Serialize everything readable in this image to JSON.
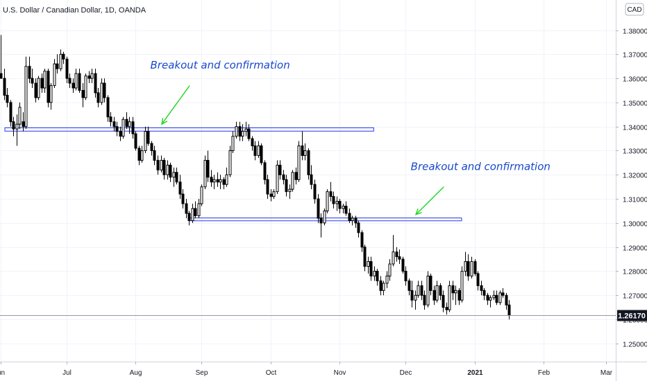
{
  "chart_data": {
    "type": "candlestick",
    "title": "U.S. Dollar / Canadian Dollar, 1D, OANDA",
    "currency": "CAD",
    "y_ticks": [
      "1.38000",
      "1.37000",
      "1.36000",
      "1.35000",
      "1.34000",
      "1.33000",
      "1.32000",
      "1.31000",
      "1.30000",
      "1.29000",
      "1.28000",
      "1.27000",
      "1.26000",
      "1.25000"
    ],
    "y_tick_values": [
      1.38,
      1.37,
      1.36,
      1.35,
      1.34,
      1.33,
      1.32,
      1.31,
      1.3,
      1.29,
      1.28,
      1.27,
      1.26,
      1.25
    ],
    "ylim": [
      1.2425,
      1.3925
    ],
    "last_price_label": "1.26170",
    "last_price": 1.2617,
    "x_ticks": [
      {
        "label": "un",
        "index": 0,
        "bold": false
      },
      {
        "label": "Jul",
        "index": 21,
        "bold": false
      },
      {
        "label": "Aug",
        "index": 43,
        "bold": false
      },
      {
        "label": "Sep",
        "index": 64,
        "bold": false
      },
      {
        "label": "Oct",
        "index": 86,
        "bold": false
      },
      {
        "label": "Nov",
        "index": 108,
        "bold": false
      },
      {
        "label": "Dec",
        "index": 129,
        "bold": false
      },
      {
        "label": "2021",
        "index": 151,
        "bold": true
      },
      {
        "label": "Feb",
        "index": 173,
        "bold": false
      },
      {
        "label": "Mar",
        "index": 193,
        "bold": false
      }
    ],
    "levels": [
      {
        "name": "resistance-zone",
        "top": 1.3395,
        "bottom": 1.3381,
        "start_index": 0,
        "end_index": 118
      },
      {
        "name": "support-zone",
        "top": 1.3021,
        "bottom": 1.3009,
        "start_index": 59,
        "end_index": 146
      }
    ],
    "annotations": [
      {
        "text": "Breakout and confirmation",
        "index": 51,
        "price": 1.364,
        "arrow_from": [
          58,
          1.357
        ],
        "arrow_to": [
          50,
          1.341
        ]
      },
      {
        "text": "Breakout and confirmation",
        "index": 134,
        "price": 1.322,
        "arrow_from": [
          139,
          1.315
        ],
        "arrow_to": [
          131,
          1.3035
        ]
      }
    ],
    "candles": [
      [
        1.362,
        1.378,
        1.36,
        1.36
      ],
      [
        1.36,
        1.364,
        1.351,
        1.353
      ],
      [
        1.353,
        1.356,
        1.348,
        1.35
      ],
      [
        1.35,
        1.351,
        1.34,
        1.342
      ],
      [
        1.342,
        1.344,
        1.336,
        1.339
      ],
      [
        1.339,
        1.345,
        1.332,
        1.341
      ],
      [
        1.341,
        1.35,
        1.339,
        1.348
      ],
      [
        1.342,
        1.346,
        1.338,
        1.34
      ],
      [
        1.34,
        1.369,
        1.339,
        1.365
      ],
      [
        1.365,
        1.369,
        1.358,
        1.36
      ],
      [
        1.36,
        1.364,
        1.356,
        1.358
      ],
      [
        1.358,
        1.36,
        1.35,
        1.352
      ],
      [
        1.352,
        1.361,
        1.351,
        1.36
      ],
      [
        1.36,
        1.362,
        1.354,
        1.356
      ],
      [
        1.356,
        1.364,
        1.354,
        1.363
      ],
      [
        1.363,
        1.364,
        1.348,
        1.35
      ],
      [
        1.35,
        1.358,
        1.347,
        1.357
      ],
      [
        1.357,
        1.368,
        1.356,
        1.366
      ],
      [
        1.366,
        1.37,
        1.362,
        1.364
      ],
      [
        1.364,
        1.372,
        1.363,
        1.37
      ],
      [
        1.37,
        1.371,
        1.366,
        1.368
      ],
      [
        1.368,
        1.369,
        1.358,
        1.36
      ],
      [
        1.36,
        1.362,
        1.356,
        1.358
      ],
      [
        1.358,
        1.36,
        1.354,
        1.356
      ],
      [
        1.356,
        1.364,
        1.355,
        1.362
      ],
      [
        1.362,
        1.364,
        1.354,
        1.355
      ],
      [
        1.355,
        1.358,
        1.348,
        1.352
      ],
      [
        1.352,
        1.362,
        1.351,
        1.361
      ],
      [
        1.361,
        1.363,
        1.358,
        1.36
      ],
      [
        1.36,
        1.364,
        1.358,
        1.362
      ],
      [
        1.362,
        1.364,
        1.352,
        1.354
      ],
      [
        1.354,
        1.356,
        1.348,
        1.35
      ],
      [
        1.35,
        1.36,
        1.349,
        1.358
      ],
      [
        1.358,
        1.36,
        1.35,
        1.352
      ],
      [
        1.352,
        1.353,
        1.342,
        1.344
      ],
      [
        1.344,
        1.346,
        1.34,
        1.342
      ],
      [
        1.342,
        1.344,
        1.338,
        1.34
      ],
      [
        1.34,
        1.342,
        1.336,
        1.338
      ],
      [
        1.338,
        1.34,
        1.334,
        1.336
      ],
      [
        1.336,
        1.344,
        1.335,
        1.343
      ],
      [
        1.343,
        1.346,
        1.339,
        1.34
      ],
      [
        1.34,
        1.344,
        1.337,
        1.342
      ],
      [
        1.342,
        1.344,
        1.335,
        1.337
      ],
      [
        1.337,
        1.338,
        1.33,
        1.331
      ],
      [
        1.331,
        1.332,
        1.324,
        1.326
      ],
      [
        1.326,
        1.332,
        1.325,
        1.33
      ],
      [
        1.33,
        1.34,
        1.329,
        1.338
      ],
      [
        1.338,
        1.34,
        1.332,
        1.333
      ],
      [
        1.333,
        1.334,
        1.328,
        1.33
      ],
      [
        1.33,
        1.332,
        1.324,
        1.326
      ],
      [
        1.326,
        1.328,
        1.32,
        1.322
      ],
      [
        1.322,
        1.328,
        1.321,
        1.326
      ],
      [
        1.326,
        1.327,
        1.318,
        1.32
      ],
      [
        1.32,
        1.326,
        1.318,
        1.324
      ],
      [
        1.324,
        1.325,
        1.317,
        1.319
      ],
      [
        1.319,
        1.323,
        1.315,
        1.321
      ],
      [
        1.321,
        1.323,
        1.316,
        1.317
      ],
      [
        1.317,
        1.32,
        1.31,
        1.312
      ],
      [
        1.312,
        1.314,
        1.306,
        1.308
      ],
      [
        1.308,
        1.31,
        1.302,
        1.304
      ],
      [
        1.304,
        1.305,
        1.299,
        1.301
      ],
      [
        1.301,
        1.308,
        1.3,
        1.306
      ],
      [
        1.306,
        1.309,
        1.302,
        1.303
      ],
      [
        1.303,
        1.31,
        1.302,
        1.308
      ],
      [
        1.308,
        1.316,
        1.307,
        1.315
      ],
      [
        1.315,
        1.328,
        1.314,
        1.326
      ],
      [
        1.326,
        1.33,
        1.317,
        1.319
      ],
      [
        1.319,
        1.322,
        1.315,
        1.317
      ],
      [
        1.317,
        1.32,
        1.314,
        1.318
      ],
      [
        1.318,
        1.321,
        1.315,
        1.317
      ],
      [
        1.317,
        1.32,
        1.314,
        1.318
      ],
      [
        1.318,
        1.319,
        1.314,
        1.316
      ],
      [
        1.316,
        1.323,
        1.315,
        1.32
      ],
      [
        1.32,
        1.332,
        1.319,
        1.33
      ],
      [
        1.33,
        1.338,
        1.329,
        1.336
      ],
      [
        1.336,
        1.342,
        1.335,
        1.34
      ],
      [
        1.34,
        1.342,
        1.334,
        1.336
      ],
      [
        1.336,
        1.341,
        1.334,
        1.338
      ],
      [
        1.338,
        1.342,
        1.336,
        1.339
      ],
      [
        1.339,
        1.341,
        1.334,
        1.335
      ],
      [
        1.335,
        1.336,
        1.33,
        1.332
      ],
      [
        1.332,
        1.334,
        1.326,
        1.328
      ],
      [
        1.328,
        1.334,
        1.327,
        1.332
      ],
      [
        1.332,
        1.333,
        1.324,
        1.325
      ],
      [
        1.325,
        1.326,
        1.316,
        1.318
      ],
      [
        1.318,
        1.32,
        1.31,
        1.312
      ],
      [
        1.312,
        1.314,
        1.309,
        1.311
      ],
      [
        1.311,
        1.314,
        1.31,
        1.313
      ],
      [
        1.313,
        1.326,
        1.312,
        1.324
      ],
      [
        1.324,
        1.326,
        1.318,
        1.32
      ],
      [
        1.32,
        1.322,
        1.316,
        1.318
      ],
      [
        1.318,
        1.32,
        1.311,
        1.313
      ],
      [
        1.313,
        1.316,
        1.31,
        1.314
      ],
      [
        1.314,
        1.322,
        1.313,
        1.321
      ],
      [
        1.321,
        1.323,
        1.316,
        1.318
      ],
      [
        1.318,
        1.334,
        1.317,
        1.332
      ],
      [
        1.332,
        1.338,
        1.326,
        1.328
      ],
      [
        1.328,
        1.333,
        1.326,
        1.33
      ],
      [
        1.33,
        1.331,
        1.318,
        1.32
      ],
      [
        1.32,
        1.324,
        1.314,
        1.316
      ],
      [
        1.316,
        1.318,
        1.308,
        1.31
      ],
      [
        1.31,
        1.312,
        1.3,
        1.302
      ],
      [
        1.302,
        1.304,
        1.294,
        1.3
      ],
      [
        1.3,
        1.306,
        1.299,
        1.305
      ],
      [
        1.305,
        1.314,
        1.304,
        1.313
      ],
      [
        1.313,
        1.317,
        1.309,
        1.311
      ],
      [
        1.311,
        1.313,
        1.306,
        1.308
      ],
      [
        1.308,
        1.311,
        1.305,
        1.309
      ],
      [
        1.309,
        1.31,
        1.304,
        1.306
      ],
      [
        1.306,
        1.308,
        1.304,
        1.307
      ],
      [
        1.307,
        1.309,
        1.303,
        1.304
      ],
      [
        1.304,
        1.306,
        1.3,
        1.301
      ],
      [
        1.301,
        1.303,
        1.299,
        1.302
      ],
      [
        1.302,
        1.303,
        1.298,
        1.3
      ],
      [
        1.3,
        1.301,
        1.294,
        1.296
      ],
      [
        1.296,
        1.297,
        1.288,
        1.29
      ],
      [
        1.29,
        1.291,
        1.28,
        1.282
      ],
      [
        1.282,
        1.286,
        1.279,
        1.284
      ],
      [
        1.284,
        1.286,
        1.276,
        1.278
      ],
      [
        1.278,
        1.282,
        1.276,
        1.28
      ],
      [
        1.28,
        1.281,
        1.274,
        1.276
      ],
      [
        1.276,
        1.278,
        1.27,
        1.272
      ],
      [
        1.272,
        1.276,
        1.27,
        1.275
      ],
      [
        1.275,
        1.28,
        1.273,
        1.278
      ],
      [
        1.278,
        1.285,
        1.276,
        1.283
      ],
      [
        1.283,
        1.295,
        1.282,
        1.288
      ],
      [
        1.288,
        1.29,
        1.284,
        1.286
      ],
      [
        1.286,
        1.289,
        1.283,
        1.285
      ],
      [
        1.285,
        1.286,
        1.279,
        1.28
      ],
      [
        1.28,
        1.282,
        1.274,
        1.276
      ],
      [
        1.276,
        1.277,
        1.27,
        1.272
      ],
      [
        1.272,
        1.276,
        1.265,
        1.268
      ],
      [
        1.268,
        1.272,
        1.264,
        1.27
      ],
      [
        1.27,
        1.276,
        1.269,
        1.274
      ],
      [
        1.274,
        1.276,
        1.268,
        1.27
      ],
      [
        1.27,
        1.272,
        1.264,
        1.266
      ],
      [
        1.266,
        1.28,
        1.265,
        1.278
      ],
      [
        1.278,
        1.279,
        1.27,
        1.272
      ],
      [
        1.272,
        1.274,
        1.266,
        1.268
      ],
      [
        1.268,
        1.276,
        1.267,
        1.274
      ],
      [
        1.274,
        1.275,
        1.268,
        1.27
      ],
      [
        1.27,
        1.272,
        1.263,
        1.265
      ],
      [
        1.265,
        1.267,
        1.262,
        1.264
      ],
      [
        1.264,
        1.276,
        1.263,
        1.274
      ],
      [
        1.274,
        1.276,
        1.268,
        1.271
      ],
      [
        1.271,
        1.274,
        1.266,
        1.272
      ],
      [
        1.272,
        1.273,
        1.266,
        1.268
      ],
      [
        1.268,
        1.282,
        1.267,
        1.28
      ],
      [
        1.28,
        1.288,
        1.278,
        1.284
      ],
      [
        1.284,
        1.287,
        1.276,
        1.278
      ],
      [
        1.278,
        1.286,
        1.277,
        1.284
      ],
      [
        1.284,
        1.285,
        1.278,
        1.279
      ],
      [
        1.279,
        1.28,
        1.272,
        1.274
      ],
      [
        1.274,
        1.276,
        1.27,
        1.272
      ],
      [
        1.272,
        1.273,
        1.268,
        1.27
      ],
      [
        1.27,
        1.271,
        1.266,
        1.268
      ],
      [
        1.268,
        1.27,
        1.265,
        1.269
      ],
      [
        1.269,
        1.272,
        1.268,
        1.27
      ],
      [
        1.27,
        1.272,
        1.266,
        1.267
      ],
      [
        1.267,
        1.272,
        1.266,
        1.271
      ],
      [
        1.271,
        1.273,
        1.269,
        1.27
      ],
      [
        1.27,
        1.271,
        1.264,
        1.266
      ],
      [
        1.266,
        1.268,
        1.26,
        1.2617
      ]
    ]
  }
}
